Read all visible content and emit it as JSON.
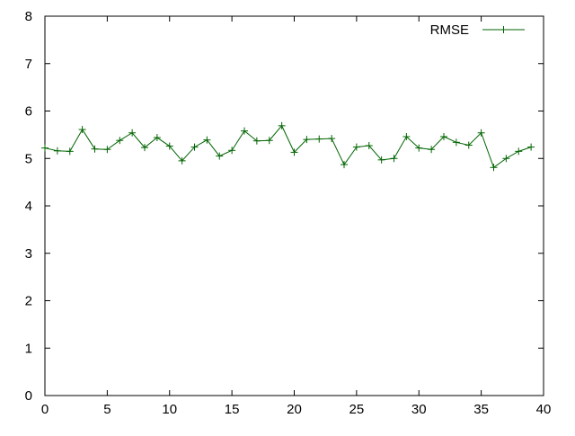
{
  "chart_data": {
    "type": "line",
    "title": "",
    "xlabel": "",
    "ylabel": "",
    "xlim": [
      0,
      40
    ],
    "ylim": [
      0,
      8
    ],
    "x_ticks": [
      0,
      5,
      10,
      15,
      20,
      25,
      30,
      35,
      40
    ],
    "y_ticks": [
      0,
      1,
      2,
      3,
      4,
      5,
      6,
      7,
      8
    ],
    "grid": false,
    "legend_position": "top-right",
    "series": [
      {
        "name": "RMSE",
        "color": "#006400",
        "marker": "plus",
        "x": [
          0,
          1,
          2,
          3,
          4,
          5,
          6,
          7,
          8,
          9,
          10,
          11,
          12,
          13,
          14,
          15,
          16,
          17,
          18,
          19,
          20,
          21,
          22,
          23,
          24,
          25,
          26,
          27,
          28,
          29,
          30,
          31,
          32,
          33,
          34,
          35,
          36,
          37,
          38,
          39
        ],
        "y": [
          5.22,
          5.16,
          5.15,
          5.61,
          5.2,
          5.19,
          5.38,
          5.54,
          5.23,
          5.44,
          5.26,
          4.95,
          5.24,
          5.39,
          5.05,
          5.17,
          5.58,
          5.37,
          5.38,
          5.69,
          5.13,
          5.4,
          5.41,
          5.42,
          4.87,
          5.24,
          5.27,
          4.97,
          5.0,
          5.46,
          5.22,
          5.19,
          5.46,
          5.34,
          5.28,
          5.54,
          4.81,
          5.0,
          5.15,
          5.24
        ]
      }
    ]
  }
}
